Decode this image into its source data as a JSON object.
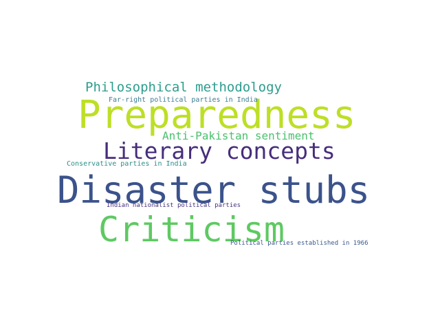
{
  "words": {
    "preparedness": {
      "text": "Preparedness",
      "color": "#bddf26"
    },
    "disaster_stubs": {
      "text": "Disaster stubs",
      "color": "#3b528b"
    },
    "criticism": {
      "text": "Criticism",
      "color": "#5ec962"
    },
    "literary_concepts": {
      "text": "Literary concepts",
      "color": "#472d7b"
    },
    "philosophical_methodology": {
      "text": "Philosophical methodology",
      "color": "#2c9d8d"
    },
    "anti_pakistan_sentiment": {
      "text": "Anti-Pakistan sentiment",
      "color": "#4ac16d"
    },
    "far_right_parties": {
      "text": "Far-right political parties in India",
      "color": "#3b7c8e"
    },
    "conservative_parties": {
      "text": "Conservative parties in India",
      "color": "#2a8e8a"
    },
    "indian_nationalist_parties": {
      "text": "Indian nationalist political parties",
      "color": "#46327e"
    },
    "parties_established_1966": {
      "text": "Political parties established in 1966",
      "color": "#39568c"
    }
  }
}
